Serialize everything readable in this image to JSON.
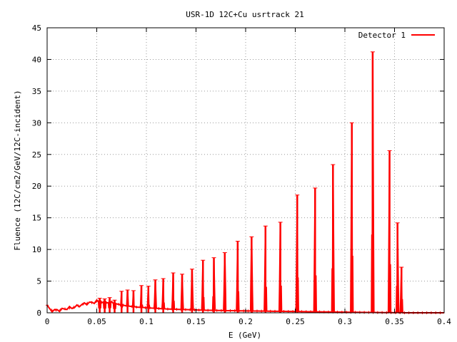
{
  "chart_data": {
    "type": "line",
    "title": "USR-1D 12C+Cu usrtrack 21",
    "xlabel": "E (GeV)",
    "ylabel": "Fluence (12C/cm2/GeV/12C-incident)",
    "xlim": [
      0,
      0.4
    ],
    "ylim": [
      0,
      45
    ],
    "x_ticks": [
      0,
      0.05,
      0.1,
      0.15,
      0.2,
      0.25,
      0.3,
      0.35,
      0.4
    ],
    "x_tick_labels": [
      "0",
      "0.05",
      "0.1",
      "0.15",
      "0.2",
      "0.25",
      "0.3",
      "0.35",
      "0.4"
    ],
    "y_ticks": [
      0,
      5,
      10,
      15,
      20,
      25,
      30,
      35,
      40,
      45
    ],
    "y_tick_labels": [
      "0",
      "5",
      "10",
      "15",
      "20",
      "25",
      "30",
      "35",
      "40",
      "45"
    ],
    "grid": true,
    "legend_position": "top-right",
    "series": [
      {
        "name": "Detector 1",
        "color": "#ff0000",
        "baseline_points": [
          [
            0,
            1.2
          ],
          [
            0.002,
            0.5
          ],
          [
            0.005,
            0.4
          ],
          [
            0.01,
            0.4
          ],
          [
            0.015,
            0.5
          ],
          [
            0.02,
            0.7
          ],
          [
            0.025,
            0.8
          ],
          [
            0.03,
            1.0
          ],
          [
            0.035,
            1.3
          ],
          [
            0.04,
            1.5
          ],
          [
            0.045,
            1.6
          ],
          [
            0.05,
            1.8
          ],
          [
            0.06,
            1.7
          ],
          [
            0.07,
            1.4
          ],
          [
            0.08,
            1.1
          ],
          [
            0.09,
            0.9
          ],
          [
            0.1,
            0.8
          ],
          [
            0.12,
            0.6
          ],
          [
            0.14,
            0.5
          ],
          [
            0.16,
            0.4
          ],
          [
            0.2,
            0.3
          ],
          [
            0.25,
            0.2
          ],
          [
            0.3,
            0.1
          ],
          [
            0.33,
            0.05
          ],
          [
            0.36,
            0.0
          ],
          [
            0.4,
            0.0
          ]
        ],
        "peaks": [
          {
            "x": 0.053,
            "y": 2.3
          },
          {
            "x": 0.058,
            "y": 2.2
          },
          {
            "x": 0.063,
            "y": 2.4
          },
          {
            "x": 0.068,
            "y": 2.0
          },
          {
            "x": 0.075,
            "y": 3.4
          },
          {
            "x": 0.081,
            "y": 3.6
          },
          {
            "x": 0.087,
            "y": 3.5
          },
          {
            "x": 0.095,
            "y": 4.3
          },
          {
            "x": 0.102,
            "y": 4.2
          },
          {
            "x": 0.109,
            "y": 5.2
          },
          {
            "x": 0.117,
            "y": 5.4
          },
          {
            "x": 0.127,
            "y": 6.3
          },
          {
            "x": 0.136,
            "y": 6.1
          },
          {
            "x": 0.146,
            "y": 6.9
          },
          {
            "x": 0.157,
            "y": 8.3
          },
          {
            "x": 0.168,
            "y": 8.7
          },
          {
            "x": 0.179,
            "y": 9.5
          },
          {
            "x": 0.192,
            "y": 11.3
          },
          {
            "x": 0.206,
            "y": 12.0
          },
          {
            "x": 0.22,
            "y": 13.7
          },
          {
            "x": 0.235,
            "y": 14.3
          },
          {
            "x": 0.252,
            "y": 18.6
          },
          {
            "x": 0.27,
            "y": 19.7
          },
          {
            "x": 0.288,
            "y": 23.4
          },
          {
            "x": 0.307,
            "y": 30.0
          },
          {
            "x": 0.328,
            "y": 41.2
          },
          {
            "x": 0.345,
            "y": 25.6
          },
          {
            "x": 0.353,
            "y": 14.2
          },
          {
            "x": 0.357,
            "y": 7.2
          }
        ]
      }
    ]
  }
}
